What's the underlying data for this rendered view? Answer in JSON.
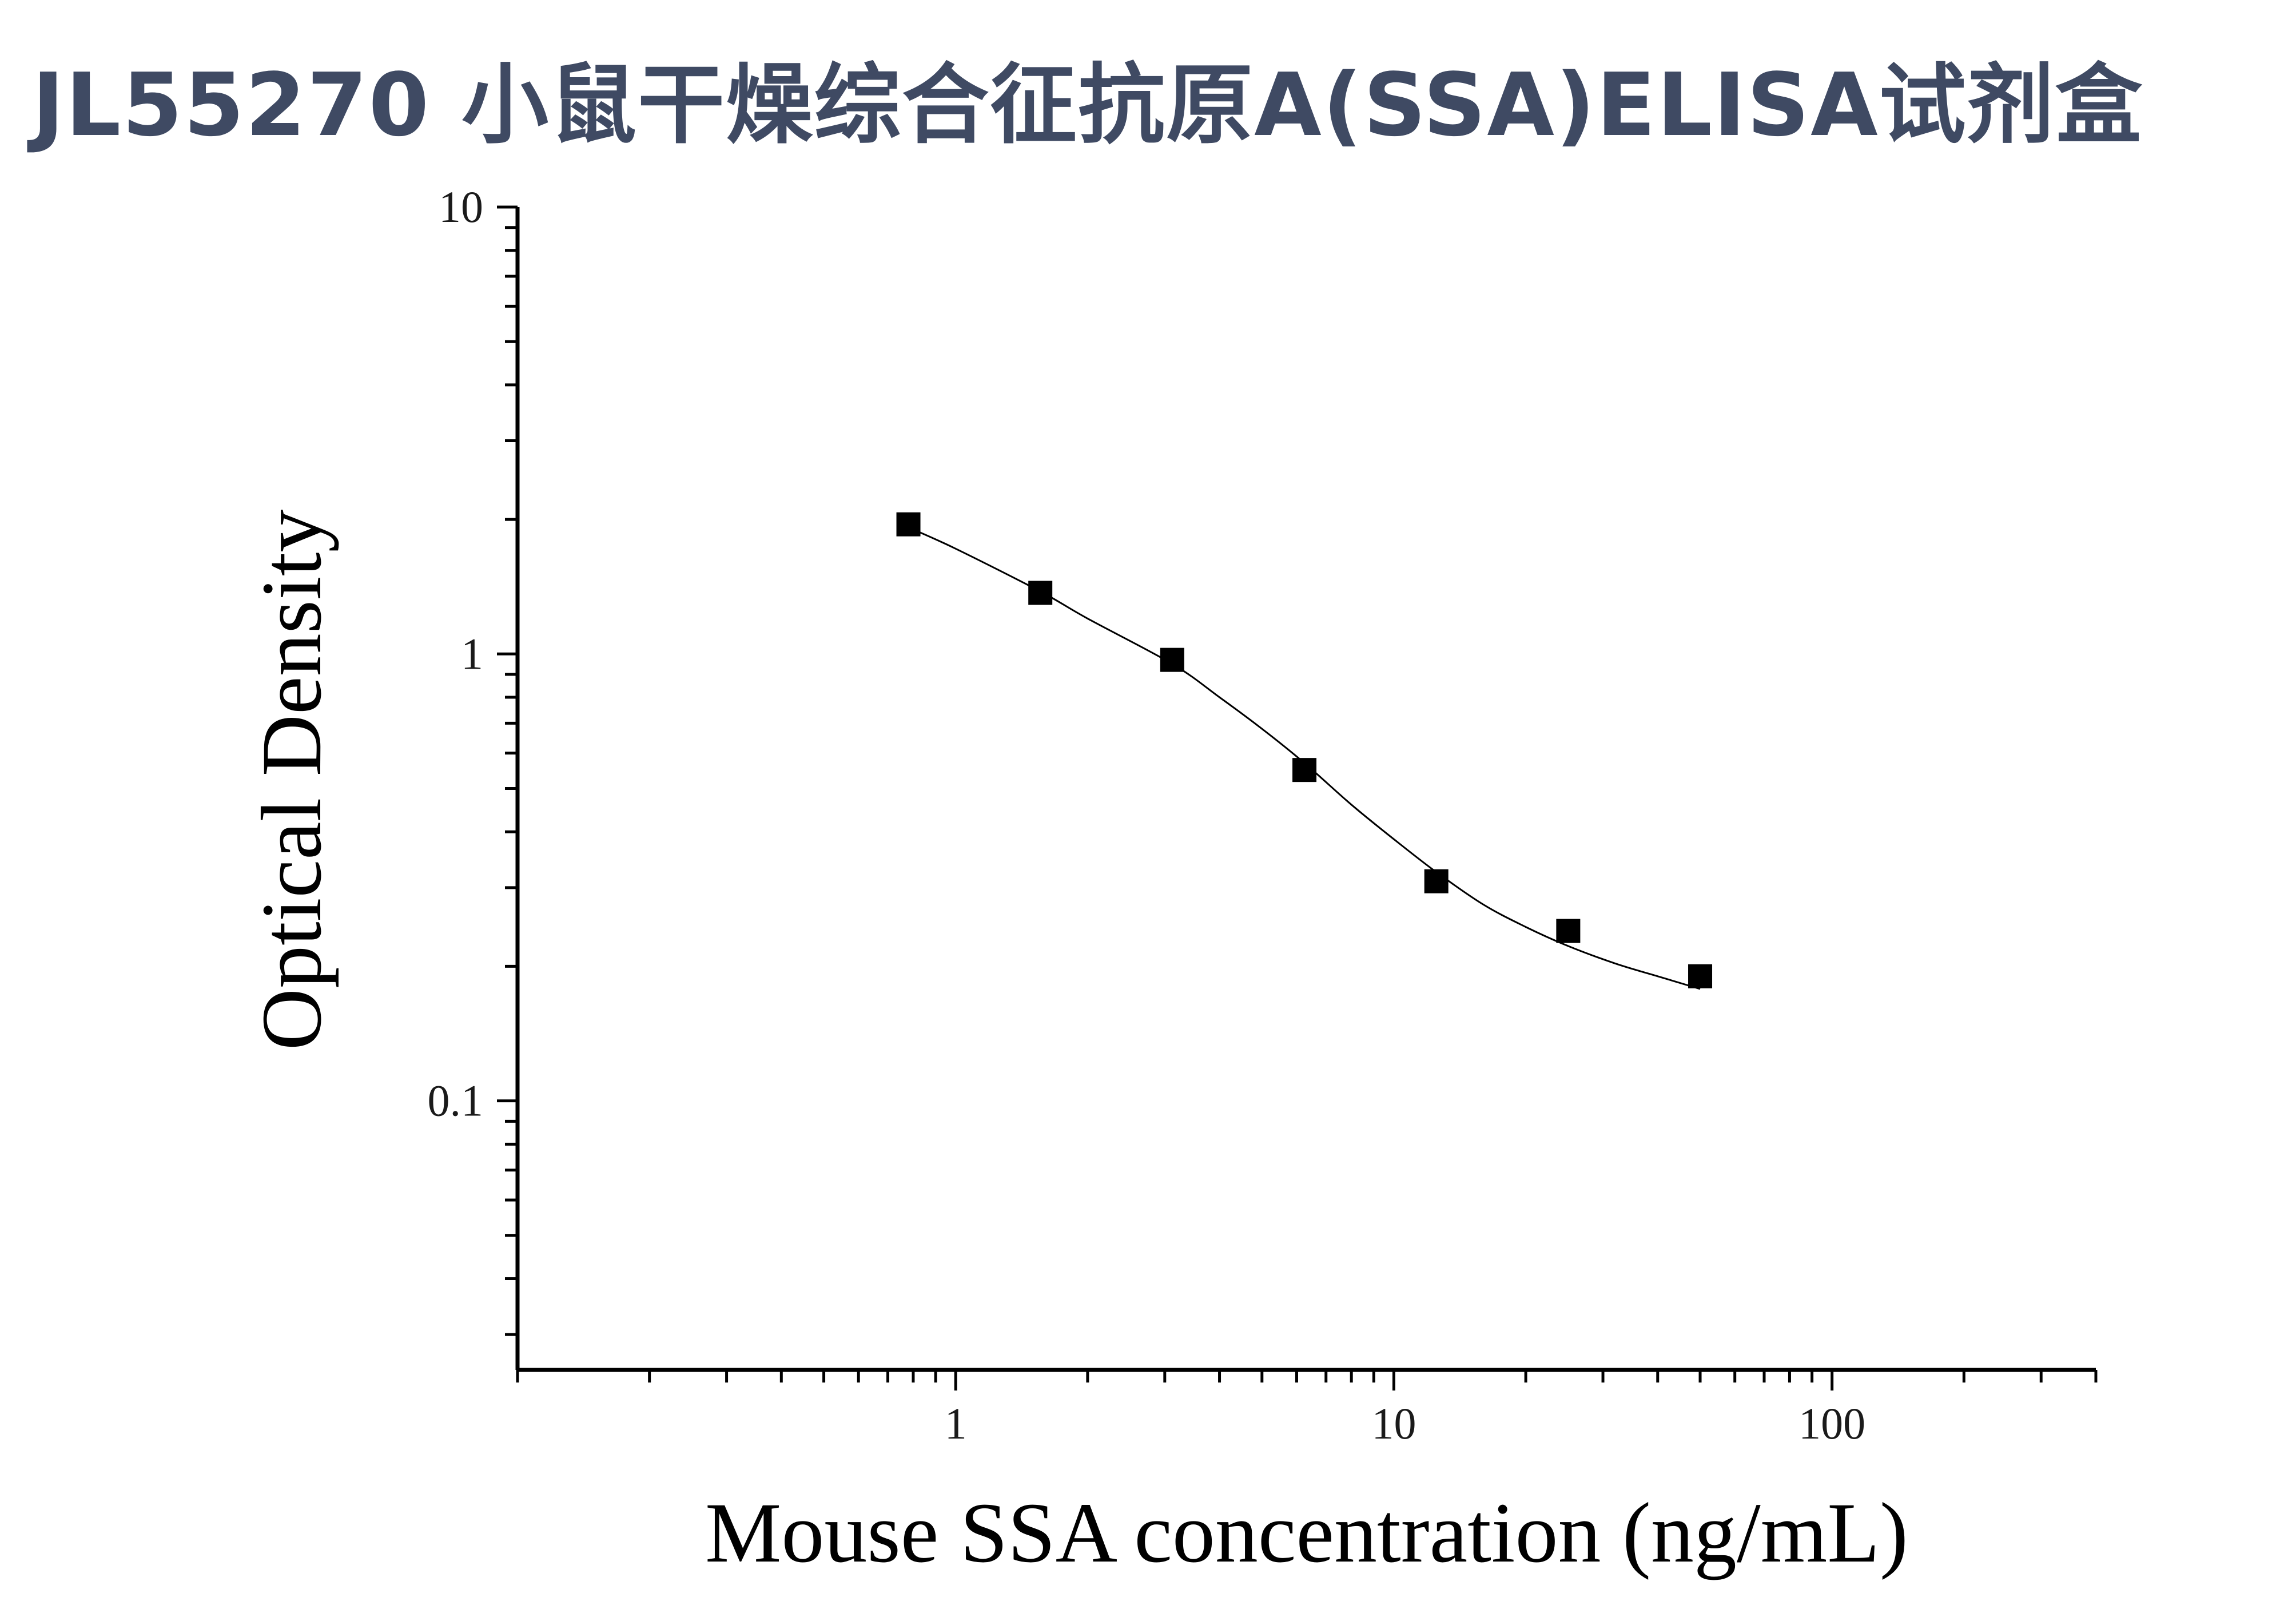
{
  "title": "JL55270 小鼠干燥综合征抗原A(SSA)ELISA试剂盒",
  "colors": {
    "title": "#3f4a63",
    "axis": "#000000",
    "marker": "#000000",
    "curve": "#000000"
  },
  "chart_data": {
    "type": "scatter",
    "title": "JL55270 小鼠干燥综合征抗原A(SSA)ELISA试剂盒",
    "xlabel": "Mouse SSA concentration (ng/mL)",
    "ylabel": "Optical Density",
    "x_scale": "log",
    "y_scale": "log",
    "xlim": [
      0.1,
      400
    ],
    "ylim": [
      0.025,
      10
    ],
    "x_tick_labels": [
      "1",
      "10",
      "100"
    ],
    "y_tick_labels": [
      "0.1",
      "1",
      "10"
    ],
    "grid": false,
    "legend": "none",
    "series": [
      {
        "marker": "square",
        "x": [
          0.78,
          1.56,
          3.12,
          6.25,
          12.5,
          25,
          50
        ],
        "y": [
          1.95,
          1.37,
          0.97,
          0.55,
          0.31,
          0.24,
          0.19
        ]
      }
    ],
    "fit_curve": {
      "type": "4PL",
      "x": [
        0.78,
        1.0,
        1.56,
        2.0,
        3.12,
        4.0,
        5.0,
        6.25,
        8.0,
        10.0,
        12.5,
        16.0,
        20.0,
        25.0,
        32.0,
        40.0,
        50.0
      ],
      "y": [
        1.92,
        1.72,
        1.38,
        1.2,
        0.95,
        0.8,
        0.68,
        0.57,
        0.46,
        0.385,
        0.325,
        0.275,
        0.245,
        0.222,
        0.203,
        0.19,
        0.178
      ]
    }
  }
}
